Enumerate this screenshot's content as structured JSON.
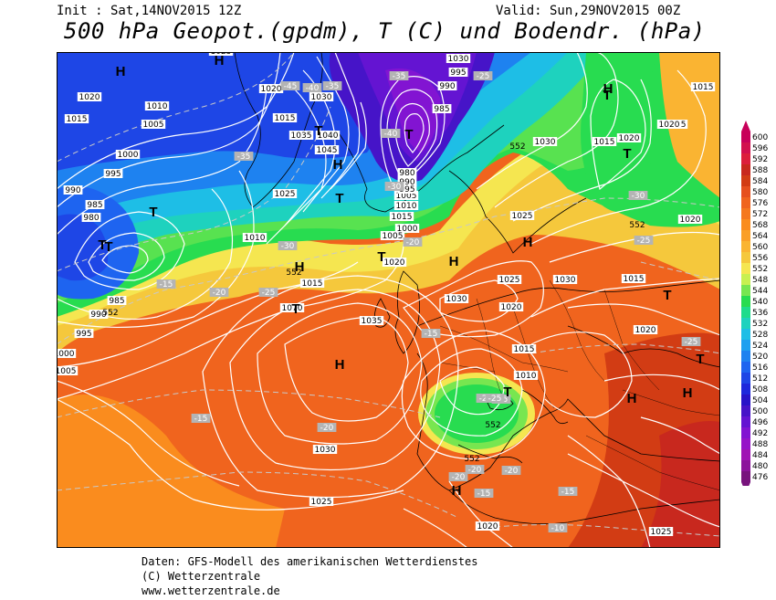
{
  "header": {
    "init": "Init : Sat,14NOV2015 12Z",
    "valid": "Valid: Sun,29NOV2015 00Z",
    "title": "500 hPa Geopot.(gpdm), T (C) und Bodendr. (hPa)"
  },
  "credits": {
    "line1": "Daten: GFS-Modell des amerikanischen Wetterdienstes",
    "line2": "(C) Wetterzentrale",
    "line3": "www.wetterzentrale.de"
  },
  "legend": {
    "levels": [
      "600",
      "596",
      "592",
      "588",
      "584",
      "580",
      "576",
      "572",
      "568",
      "564",
      "560",
      "556",
      "552",
      "548",
      "544",
      "540",
      "536",
      "532",
      "528",
      "524",
      "520",
      "516",
      "512",
      "508",
      "504",
      "500",
      "496",
      "492",
      "488",
      "484",
      "480",
      "476"
    ],
    "colors": [
      "#c8005a",
      "#d2104e",
      "#dc1e3c",
      "#c8281e",
      "#d23c14",
      "#e6501e",
      "#f0641e",
      "#f5781e",
      "#fa8c1e",
      "#fa9f28",
      "#fab432",
      "#f5c83c",
      "#f5e650",
      "#c8f050",
      "#78e650",
      "#28dc50",
      "#1edc8c",
      "#1ed2be",
      "#1ebee6",
      "#1ea0f0",
      "#1e82f0",
      "#1e64f0",
      "#1e46e6",
      "#1e28dc",
      "#2814c8",
      "#4614c8",
      "#6414d2",
      "#8214d2",
      "#9614c8",
      "#a014b4",
      "#8c149b",
      "#78147d"
    ]
  },
  "map": {
    "isobar_labels": [
      "1025",
      "1020",
      "1010",
      "1005",
      "1015",
      "1000",
      "995",
      "990",
      "985",
      "980",
      "1020",
      "1015",
      "1025",
      "1035",
      "1030",
      "1040",
      "1045",
      "1005",
      "1010",
      "1015",
      "1030",
      "995",
      "990",
      "985",
      "980",
      "990",
      "995",
      "1000",
      "1005",
      "1010",
      "1015",
      "1020",
      "1025",
      "1030",
      "1030",
      "1025",
      "1030",
      "1020",
      "1015",
      "1010",
      "1035",
      "1030",
      "1025",
      "1020",
      "1025",
      "1020",
      "1015",
      "1015",
      "1020",
      "1025",
      "1020",
      "1015",
      "1020",
      "1000",
      "1005",
      "985",
      "990",
      "995",
      "1070"
    ],
    "temp_labels": [
      "-45",
      "-40",
      "-35",
      "-35",
      "-40",
      "-35",
      "-30",
      "-30",
      "-25",
      "-20",
      "-25",
      "-20",
      "-30",
      "-25",
      "-15",
      "-20",
      "-25",
      "-20",
      "-20",
      "-15",
      "-15",
      "-20",
      "-15",
      "-10",
      "-25",
      "-20",
      "-15",
      "-25"
    ],
    "height_labels": [
      "552",
      "552",
      "552",
      "552",
      "552",
      "552"
    ],
    "pressure_centers": [
      "H",
      "H",
      "H",
      "H",
      "H",
      "H",
      "H",
      "H",
      "H",
      "H",
      "H",
      "T",
      "T",
      "T",
      "T",
      "T",
      "T",
      "T",
      "T",
      "T",
      "T",
      "T",
      "T",
      "T"
    ]
  }
}
